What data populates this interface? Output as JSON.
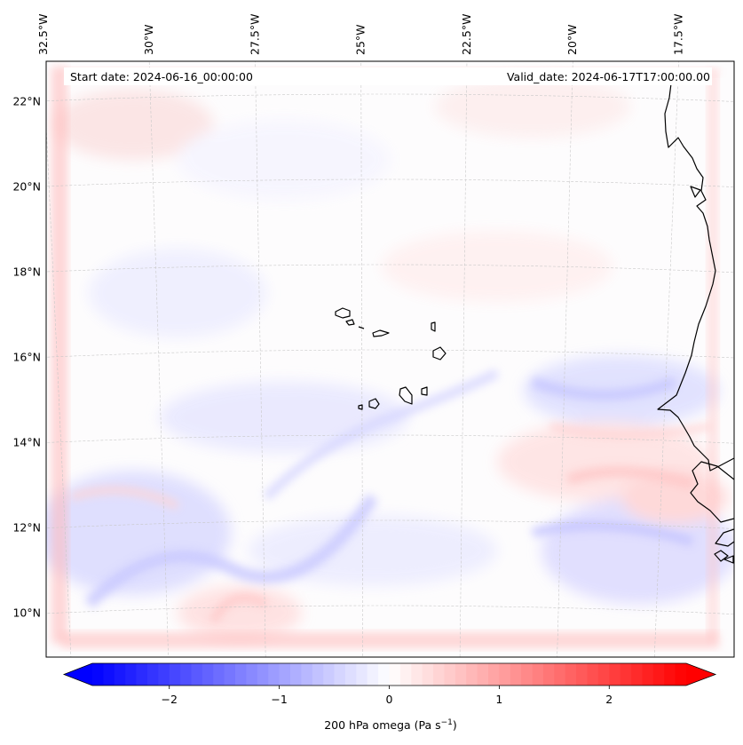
{
  "map": {
    "start_date_label": "Start date: 2024-06-16_00:00:00",
    "valid_date_label": "Valid_date: 2024-06-17T17:00:00.00",
    "lon_labels": [
      {
        "lon": -32.5,
        "text": "32.5°W"
      },
      {
        "lon": -30.0,
        "text": "30°W"
      },
      {
        "lon": -27.5,
        "text": "27.5°W"
      },
      {
        "lon": -25.0,
        "text": "25°W"
      },
      {
        "lon": -22.5,
        "text": "22.5°W"
      },
      {
        "lon": -20.0,
        "text": "20°W"
      },
      {
        "lon": -17.5,
        "text": "17.5°W"
      }
    ],
    "lat_labels": [
      {
        "lat": 22,
        "text": "22°N"
      },
      {
        "lat": 20,
        "text": "20°N"
      },
      {
        "lat": 18,
        "text": "18°N"
      },
      {
        "lat": 16,
        "text": "16°N"
      },
      {
        "lat": 14,
        "text": "14°N"
      },
      {
        "lat": 12,
        "text": "12°N"
      },
      {
        "lat": 10,
        "text": "10°N"
      }
    ],
    "extent": {
      "lon_min": -33.0,
      "lon_max": -15.7,
      "lat_min": 8.9,
      "lat_max": 22.8
    },
    "field": "200 hPa omega",
    "colormap": "bwr",
    "colors": {
      "negative": "#0000ff",
      "zero": "#ffffff",
      "positive": "#ff0000",
      "coast": "#000000",
      "grid": "#c8c8c8"
    },
    "colorbar": {
      "label_prefix": "200 hPa omega (Pa s",
      "label_exp": "−1",
      "label_suffix": ")",
      "min": -2.7,
      "max": 2.7,
      "levels": 54,
      "extend": "both",
      "ticks": [
        {
          "value": -2,
          "text": "−2"
        },
        {
          "value": -1,
          "text": "−1"
        },
        {
          "value": 0,
          "text": "0"
        },
        {
          "value": 1,
          "text": "1"
        },
        {
          "value": 2,
          "text": "2"
        }
      ]
    }
  }
}
